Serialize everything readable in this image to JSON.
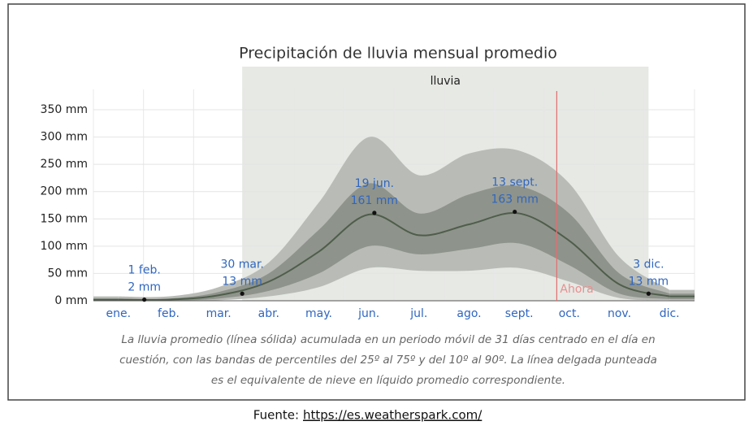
{
  "chart_data": {
    "type": "line",
    "title": "Precipitación de lluvia mensual promedio",
    "season_label": "lluvia",
    "categories": [
      "ene.",
      "feb.",
      "mar.",
      "abr.",
      "may.",
      "jun.",
      "jul.",
      "ago.",
      "sept.",
      "oct.",
      "nov.",
      "dic."
    ],
    "series": [
      {
        "name": "p90",
        "color": "#b9bcb6",
        "values": [
          8,
          8,
          25,
          70,
          180,
          300,
          230,
          270,
          275,
          215,
          80,
          20
        ]
      },
      {
        "name": "p75",
        "color": "#8e938b",
        "values": [
          4,
          4,
          16,
          50,
          130,
          215,
          160,
          195,
          210,
          160,
          50,
          13
        ]
      },
      {
        "name": "promedio",
        "color": "#4f5d4b",
        "values": [
          2,
          2,
          10,
          35,
          90,
          158,
          120,
          140,
          160,
          110,
          30,
          8
        ]
      },
      {
        "name": "p25",
        "color": "#8e938b",
        "values": [
          0,
          0,
          4,
          18,
          50,
          100,
          85,
          95,
          105,
          65,
          13,
          3
        ]
      },
      {
        "name": "p10",
        "color": "#b9bcb6",
        "values": [
          0,
          0,
          1,
          8,
          25,
          60,
          55,
          55,
          60,
          35,
          5,
          1
        ]
      }
    ],
    "annotations": [
      {
        "date": "1 feb.",
        "value": 2,
        "label": "2 mm"
      },
      {
        "date": "30 mar.",
        "value": 13,
        "label": "13 mm"
      },
      {
        "date": "19 jun.",
        "value": 161,
        "label": "161 mm"
      },
      {
        "date": "13 sept.",
        "value": 163,
        "label": "163 mm"
      },
      {
        "date": "3 dic.",
        "value": 13,
        "label": "13 mm"
      }
    ],
    "now": {
      "label": "Ahora",
      "category": "oct."
    },
    "ylim": [
      0,
      350
    ],
    "yticks": [
      {
        "value": 0,
        "label": "0 mm"
      },
      {
        "value": 50,
        "label": "50 mm"
      },
      {
        "value": 100,
        "label": "100 mm"
      },
      {
        "value": 150,
        "label": "150 mm"
      },
      {
        "value": 200,
        "label": "200 mm"
      },
      {
        "value": 250,
        "label": "250 mm"
      },
      {
        "value": 300,
        "label": "300 mm"
      },
      {
        "value": 350,
        "label": "350 mm"
      }
    ],
    "grid": true,
    "caption": [
      "La lluvia promedio (línea sólida) acumulada en un periodo móvil de 31 días centrado en el día en",
      "cuestión, con las bandas de percentiles del 25º al 75º y del 10º al 90º. La línea delgada punteada",
      "es el equivalente de nieve en líquido promedio correspondiente."
    ]
  },
  "source": {
    "prefix": "Fuente:",
    "link": "https://es.weatherspark.com/"
  }
}
